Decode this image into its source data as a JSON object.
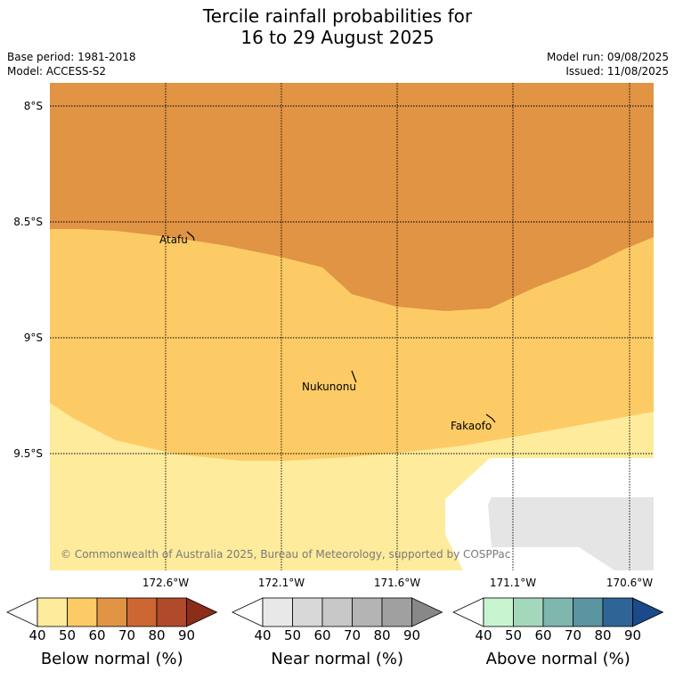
{
  "title": {
    "line1": "Tercile rainfall probabilities for",
    "line2": "16 to 29 August 2025"
  },
  "info": {
    "base_period": "Base period: 1981-2018",
    "model": "Model: ACCESS-S2",
    "model_run": "Model run: 09/08/2025",
    "issued": "Issued: 11/08/2025"
  },
  "map": {
    "lat_labels": [
      "8°S",
      "8.5°S",
      "9°S",
      "9.5°S"
    ],
    "lon_labels": [
      "172.6°W",
      "172.1°W",
      "171.6°W",
      "171.1°W",
      "170.6°W"
    ],
    "places": [
      "Atafu",
      "Nukunonu",
      "Fakaofo"
    ],
    "copyright": "© Commonwealth of Australia 2025, Bureau of Meteorology, supported by COSPPac",
    "colors": {
      "below_60": "#e09444",
      "below_50": "#fdcb65",
      "below_40": "#feeb9c",
      "no_data": "#e5e5e5"
    }
  },
  "legends": [
    {
      "label": "Below normal (%)",
      "ticks": [
        "40",
        "50",
        "60",
        "70",
        "80",
        "90"
      ],
      "colors": [
        "#ffffff",
        "#feeb9c",
        "#fdcb65",
        "#e09444",
        "#cc6633",
        "#b04a2a",
        "#8c2d1a"
      ]
    },
    {
      "label": "Near normal (%)",
      "ticks": [
        "40",
        "50",
        "60",
        "70",
        "80",
        "90"
      ],
      "colors": [
        "#ffffff",
        "#e8e8e8",
        "#d8d8d8",
        "#c8c8c8",
        "#b4b4b4",
        "#a0a0a0",
        "#888888"
      ]
    },
    {
      "label": "Above normal (%)",
      "ticks": [
        "40",
        "50",
        "60",
        "70",
        "80",
        "90"
      ],
      "colors": [
        "#ffffff",
        "#c8f5d0",
        "#a3d8bd",
        "#7fb6ae",
        "#5a94a0",
        "#2e6496",
        "#1a4a8a"
      ]
    }
  ]
}
